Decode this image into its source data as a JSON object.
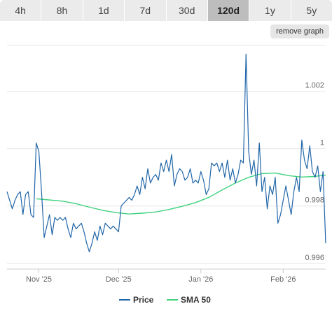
{
  "tabs": [
    {
      "label": "4h",
      "active": false
    },
    {
      "label": "8h",
      "active": false
    },
    {
      "label": "1d",
      "active": false
    },
    {
      "label": "7d",
      "active": false
    },
    {
      "label": "30d",
      "active": false
    },
    {
      "label": "120d",
      "active": true
    },
    {
      "label": "1y",
      "active": false
    },
    {
      "label": "5y",
      "active": false
    }
  ],
  "remove_button": "remove graph",
  "chart_data": {
    "type": "line",
    "x_range": [
      "2025-10-20",
      "2026-02-17"
    ],
    "xticks": [
      {
        "date": "2025-11-01",
        "label": "Nov '25"
      },
      {
        "date": "2025-12-01",
        "label": "Dec '25"
      },
      {
        "date": "2026-01-01",
        "label": "Jan '26"
      },
      {
        "date": "2026-02-01",
        "label": "Feb '26"
      }
    ],
    "ylim": [
      0.9958,
      1.0036
    ],
    "yticks": [
      {
        "value": 0.996,
        "label": "0.996"
      },
      {
        "value": 0.998,
        "label": "0.998"
      },
      {
        "value": 1.0,
        "label": "1"
      },
      {
        "value": 1.002,
        "label": "1.002"
      }
    ],
    "grid": "horizontal",
    "legend_position": "bottom",
    "series": [
      {
        "name": "Price",
        "color": "#2166a8",
        "points": [
          [
            "2025-10-20",
            0.9985
          ],
          [
            "2025-10-21",
            0.9982
          ],
          [
            "2025-10-22",
            0.9979
          ],
          [
            "2025-10-23",
            0.9982
          ],
          [
            "2025-10-24",
            0.9984
          ],
          [
            "2025-10-25",
            0.9985
          ],
          [
            "2025-10-26",
            0.9977
          ],
          [
            "2025-10-27",
            0.9984
          ],
          [
            "2025-10-28",
            0.9985
          ],
          [
            "2025-10-29",
            0.9977
          ],
          [
            "2025-10-30",
            0.9976
          ],
          [
            "2025-10-31",
            1.0002
          ],
          [
            "2025-11-01",
            0.9999
          ],
          [
            "2025-11-02",
            0.9985
          ],
          [
            "2025-11-03",
            0.9969
          ],
          [
            "2025-11-04",
            0.9973
          ],
          [
            "2025-11-05",
            0.9977
          ],
          [
            "2025-11-06",
            0.997
          ],
          [
            "2025-11-07",
            0.9976
          ],
          [
            "2025-11-08",
            0.9975
          ],
          [
            "2025-11-09",
            0.9976
          ],
          [
            "2025-11-10",
            0.9975
          ],
          [
            "2025-11-11",
            0.9976
          ],
          [
            "2025-11-12",
            0.9972
          ],
          [
            "2025-11-13",
            0.9969
          ],
          [
            "2025-11-14",
            0.9974
          ],
          [
            "2025-11-15",
            0.9972
          ],
          [
            "2025-11-16",
            0.9973
          ],
          [
            "2025-11-17",
            0.9974
          ],
          [
            "2025-11-18",
            0.9971
          ],
          [
            "2025-11-19",
            0.9967
          ],
          [
            "2025-11-20",
            0.9964
          ],
          [
            "2025-11-21",
            0.9967
          ],
          [
            "2025-11-22",
            0.9971
          ],
          [
            "2025-11-23",
            0.9968
          ],
          [
            "2025-11-24",
            0.9973
          ],
          [
            "2025-11-25",
            0.997
          ],
          [
            "2025-11-26",
            0.9974
          ],
          [
            "2025-11-27",
            0.9973
          ],
          [
            "2025-11-28",
            0.9972
          ],
          [
            "2025-11-29",
            0.9973
          ],
          [
            "2025-11-30",
            0.9972
          ],
          [
            "2025-12-01",
            0.9971
          ],
          [
            "2025-12-02",
            0.998
          ],
          [
            "2025-12-03",
            0.9981
          ],
          [
            "2025-12-04",
            0.9982
          ],
          [
            "2025-12-05",
            0.9983
          ],
          [
            "2025-12-06",
            0.9982
          ],
          [
            "2025-12-07",
            0.9984
          ],
          [
            "2025-12-08",
            0.9987
          ],
          [
            "2025-12-09",
            0.9984
          ],
          [
            "2025-12-10",
            0.999
          ],
          [
            "2025-12-11",
            0.9986
          ],
          [
            "2025-12-12",
            0.9993
          ],
          [
            "2025-12-13",
            0.9988
          ],
          [
            "2025-12-14",
            0.999
          ],
          [
            "2025-12-15",
            0.9991
          ],
          [
            "2025-12-16",
            0.9989
          ],
          [
            "2025-12-17",
            0.9995
          ],
          [
            "2025-12-18",
            0.9992
          ],
          [
            "2025-12-19",
            0.9996
          ],
          [
            "2025-12-20",
            0.9992
          ],
          [
            "2025-12-21",
            0.9998
          ],
          [
            "2025-12-22",
            0.9987
          ],
          [
            "2025-12-23",
            0.9991
          ],
          [
            "2025-12-24",
            0.9993
          ],
          [
            "2025-12-25",
            0.9992
          ],
          [
            "2025-12-26",
            0.9989
          ],
          [
            "2025-12-27",
            0.999
          ],
          [
            "2025-12-28",
            0.9993
          ],
          [
            "2025-12-29",
            0.9988
          ],
          [
            "2025-12-30",
            0.9989
          ],
          [
            "2025-12-31",
            0.9988
          ],
          [
            "2026-01-01",
            0.9992
          ],
          [
            "2026-01-02",
            0.9989
          ],
          [
            "2026-01-03",
            0.9984
          ],
          [
            "2026-01-04",
            0.9986
          ],
          [
            "2026-01-05",
            0.9995
          ],
          [
            "2026-01-06",
            0.9994
          ],
          [
            "2026-01-07",
            0.9995
          ],
          [
            "2026-01-08",
            0.9992
          ],
          [
            "2026-01-09",
            0.9995
          ],
          [
            "2026-01-10",
            0.999
          ],
          [
            "2026-01-11",
            0.9996
          ],
          [
            "2026-01-12",
            0.9989
          ],
          [
            "2026-01-13",
            0.9993
          ],
          [
            "2026-01-14",
            0.9988
          ],
          [
            "2026-01-15",
            0.9991
          ],
          [
            "2026-01-16",
            0.9996
          ],
          [
            "2026-01-17",
            0.9995
          ],
          [
            "2026-01-18",
            1.0033
          ],
          [
            "2026-01-19",
            0.9999
          ],
          [
            "2026-01-20",
            0.9991
          ],
          [
            "2026-01-21",
            0.9996
          ],
          [
            "2026-01-22",
            0.9987
          ],
          [
            "2026-01-23",
            1.0002
          ],
          [
            "2026-01-24",
            0.9985
          ],
          [
            "2026-01-25",
            0.999
          ],
          [
            "2026-01-26",
            0.9979
          ],
          [
            "2026-01-27",
            0.9987
          ],
          [
            "2026-01-28",
            0.9984
          ],
          [
            "2026-01-29",
            0.999
          ],
          [
            "2026-01-30",
            0.9974
          ],
          [
            "2026-01-31",
            0.9977
          ],
          [
            "2026-02-01",
            0.9982
          ],
          [
            "2026-02-02",
            0.9987
          ],
          [
            "2026-02-03",
            0.9982
          ],
          [
            "2026-02-04",
            0.9977
          ],
          [
            "2026-02-05",
            0.9985
          ],
          [
            "2026-02-06",
            0.999
          ],
          [
            "2026-02-07",
            0.9985
          ],
          [
            "2026-02-08",
            1.0003
          ],
          [
            "2026-02-09",
            0.9996
          ],
          [
            "2026-02-10",
            0.9993
          ],
          [
            "2026-02-11",
            1.0001
          ],
          [
            "2026-02-12",
            0.9992
          ],
          [
            "2026-02-13",
            0.999
          ],
          [
            "2026-02-14",
            0.9994
          ],
          [
            "2026-02-15",
            0.9985
          ],
          [
            "2026-02-16",
            0.9992
          ],
          [
            "2026-02-17",
            0.9967
          ]
        ]
      },
      {
        "name": "SMA 50",
        "color": "#3fd27e",
        "points": [
          [
            "2025-10-31",
            0.99825
          ],
          [
            "2025-11-05",
            0.99821
          ],
          [
            "2025-11-10",
            0.99817
          ],
          [
            "2025-11-15",
            0.99808
          ],
          [
            "2025-11-20",
            0.99796
          ],
          [
            "2025-11-25",
            0.99785
          ],
          [
            "2025-11-30",
            0.99777
          ],
          [
            "2025-12-05",
            0.99772
          ],
          [
            "2025-12-10",
            0.99775
          ],
          [
            "2025-12-15",
            0.99779
          ],
          [
            "2025-12-20",
            0.99788
          ],
          [
            "2025-12-25",
            0.99799
          ],
          [
            "2025-12-30",
            0.99812
          ],
          [
            "2026-01-04",
            0.9983
          ],
          [
            "2026-01-09",
            0.99856
          ],
          [
            "2026-01-14",
            0.9988
          ],
          [
            "2026-01-19",
            0.999
          ],
          [
            "2026-01-24",
            0.99913
          ],
          [
            "2026-01-29",
            0.99915
          ],
          [
            "2026-02-03",
            0.99906
          ],
          [
            "2026-02-08",
            0.99901
          ],
          [
            "2026-02-13",
            0.99903
          ],
          [
            "2026-02-17",
            0.99908
          ]
        ]
      }
    ]
  }
}
